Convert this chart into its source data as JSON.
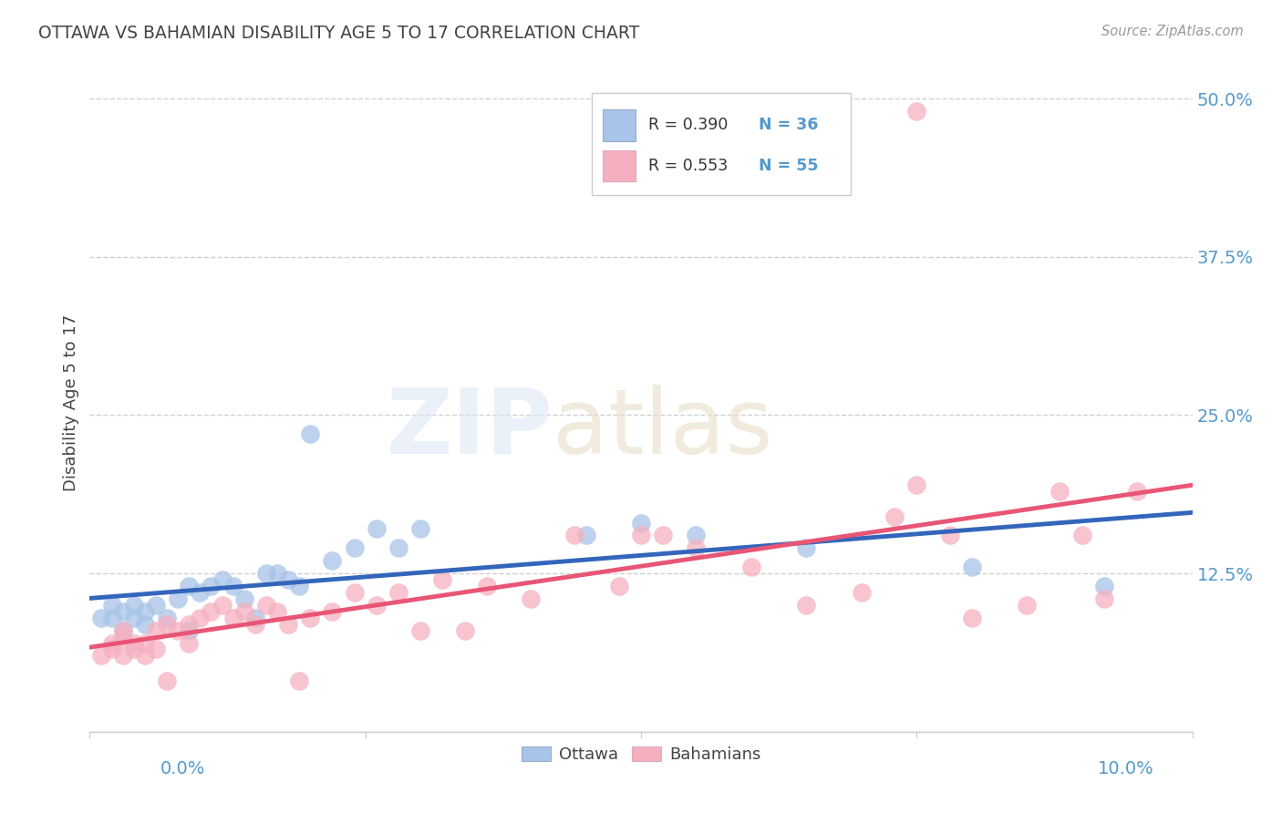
{
  "title": "OTTAWA VS BAHAMIAN DISABILITY AGE 5 TO 17 CORRELATION CHART",
  "source": "Source: ZipAtlas.com",
  "ylabel": "Disability Age 5 to 17",
  "xlim": [
    0.0,
    0.1
  ],
  "ylim": [
    0.0,
    0.52
  ],
  "yticks": [
    0.0,
    0.125,
    0.25,
    0.375,
    0.5
  ],
  "ytick_labels": [
    "",
    "12.5%",
    "25.0%",
    "37.5%",
    "50.0%"
  ],
  "xticks": [
    0.0,
    0.025,
    0.05,
    0.075,
    0.1
  ],
  "grid_color": "#d0d0d0",
  "background_color": "#ffffff",
  "ottawa_color": "#a8c4e8",
  "bahamian_color": "#f5b0c0",
  "ottawa_line_color": "#3366bb",
  "bahamian_line_color": "#e85575",
  "title_color": "#444444",
  "axis_label_color": "#5599cc",
  "source_color": "#999999",
  "r_ottawa": "R = 0.390",
  "n_ottawa": "N = 36",
  "r_bahamian": "R = 0.553",
  "n_bahamian": "N = 55",
  "ottawa_x": [
    0.001,
    0.002,
    0.002,
    0.003,
    0.003,
    0.004,
    0.004,
    0.005,
    0.005,
    0.006,
    0.007,
    0.008,
    0.009,
    0.009,
    0.01,
    0.011,
    0.012,
    0.013,
    0.014,
    0.015,
    0.016,
    0.017,
    0.018,
    0.019,
    0.02,
    0.022,
    0.024,
    0.026,
    0.028,
    0.03,
    0.045,
    0.05,
    0.055,
    0.065,
    0.08,
    0.092
  ],
  "ottawa_y": [
    0.09,
    0.09,
    0.1,
    0.095,
    0.08,
    0.1,
    0.09,
    0.095,
    0.085,
    0.1,
    0.09,
    0.105,
    0.115,
    0.08,
    0.11,
    0.115,
    0.12,
    0.115,
    0.105,
    0.09,
    0.125,
    0.125,
    0.12,
    0.115,
    0.235,
    0.135,
    0.145,
    0.16,
    0.145,
    0.16,
    0.155,
    0.165,
    0.155,
    0.145,
    0.13,
    0.115
  ],
  "bahamian_x": [
    0.001,
    0.002,
    0.002,
    0.003,
    0.003,
    0.003,
    0.004,
    0.004,
    0.005,
    0.005,
    0.006,
    0.006,
    0.007,
    0.007,
    0.008,
    0.009,
    0.009,
    0.01,
    0.011,
    0.012,
    0.013,
    0.014,
    0.015,
    0.016,
    0.017,
    0.018,
    0.019,
    0.02,
    0.022,
    0.024,
    0.026,
    0.028,
    0.03,
    0.032,
    0.034,
    0.036,
    0.04,
    0.044,
    0.048,
    0.05,
    0.052,
    0.055,
    0.06,
    0.065,
    0.07,
    0.073,
    0.075,
    0.078,
    0.08,
    0.085,
    0.088,
    0.09,
    0.092,
    0.095,
    0.075
  ],
  "bahamian_y": [
    0.06,
    0.065,
    0.07,
    0.06,
    0.075,
    0.08,
    0.065,
    0.07,
    0.06,
    0.07,
    0.065,
    0.08,
    0.085,
    0.04,
    0.08,
    0.07,
    0.085,
    0.09,
    0.095,
    0.1,
    0.09,
    0.095,
    0.085,
    0.1,
    0.095,
    0.085,
    0.04,
    0.09,
    0.095,
    0.11,
    0.1,
    0.11,
    0.08,
    0.12,
    0.08,
    0.115,
    0.105,
    0.155,
    0.115,
    0.155,
    0.155,
    0.145,
    0.13,
    0.1,
    0.11,
    0.17,
    0.195,
    0.155,
    0.09,
    0.1,
    0.19,
    0.155,
    0.105,
    0.19,
    0.49
  ]
}
